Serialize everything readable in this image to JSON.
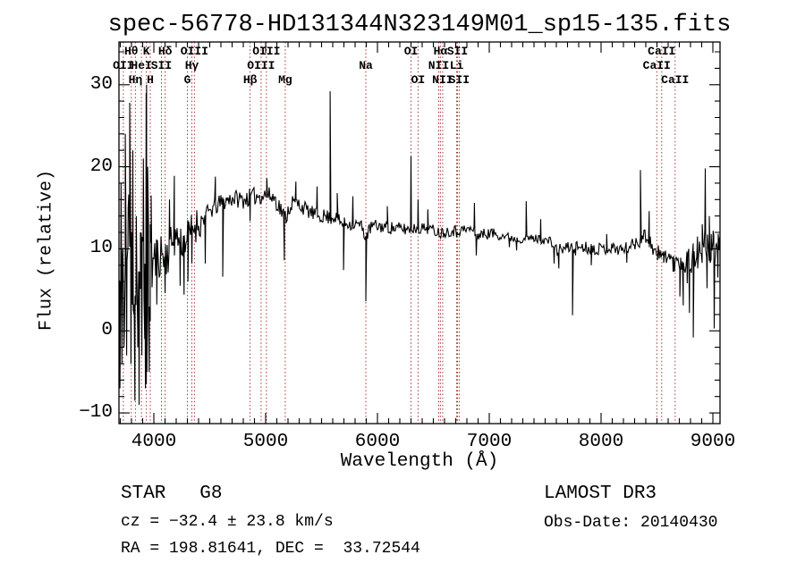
{
  "title": "spec-56778-HD131344N323149M01_sp15-135.fits",
  "footer": {
    "star_line": "STAR   G8",
    "survey_line": "LAMOST DR3",
    "cz_line": "cz = −32.4 ± 23.8 km/s",
    "obs_date_line": "Obs-Date: 20140430",
    "ra_dec_line": "RA = 198.81641, DEC =  33.72544"
  },
  "chart_data": {
    "type": "line",
    "title": "spec-56778-HD131344N323149M01_sp15-135.fits",
    "xlabel": "Wavelength (Å)",
    "ylabel": "Flux (relative)",
    "xlim": [
      3688,
      9064
    ],
    "ylim": [
      -11.3,
      35.2
    ],
    "x_ticks": [
      4000,
      5000,
      6000,
      7000,
      8000,
      9000
    ],
    "x_tick_labels": [
      "4000",
      "5000",
      "6000",
      "7000",
      "8000",
      "9000"
    ],
    "x_minor_step": 100,
    "y_ticks": [
      -10,
      0,
      10,
      20,
      30
    ],
    "y_tick_labels": [
      "−10",
      "0",
      "10",
      "20",
      "30"
    ],
    "y_minor_step": 2,
    "grid": false,
    "line_color": "#000000",
    "reference_line_color": "#aa3333",
    "spectral_lines": [
      {
        "label": "Hθ",
        "row": 1,
        "wavelength": 3798
      },
      {
        "label": "K",
        "row": 1,
        "wavelength": 3933
      },
      {
        "label": "Hδ",
        "row": 1,
        "wavelength": 4101
      },
      {
        "label": "OIII",
        "row": 1,
        "wavelength": 4363
      },
      {
        "label": "OIII",
        "row": 1,
        "wavelength": 5007
      },
      {
        "label": "OI",
        "row": 1,
        "wavelength": 6300
      },
      {
        "label": "Hα",
        "row": 1,
        "wavelength": 6563
      },
      {
        "label": "SII",
        "row": 1,
        "wavelength": 6716
      },
      {
        "label": "CaII",
        "row": 1,
        "wavelength": 8542
      },
      {
        "label": "OII",
        "row": 2,
        "wavelength": 3727
      },
      {
        "label": "HeI",
        "row": 2,
        "wavelength": 3889
      },
      {
        "label": "SII",
        "row": 2,
        "wavelength": 4068
      },
      {
        "label": "Hγ",
        "row": 2,
        "wavelength": 4340
      },
      {
        "label": "OIII",
        "row": 2,
        "wavelength": 4959
      },
      {
        "label": "Na",
        "row": 2,
        "wavelength": 5896
      },
      {
        "label": "NII",
        "row": 2,
        "wavelength": 6548
      },
      {
        "label": "Li",
        "row": 2,
        "wavelength": 6708
      },
      {
        "label": "CaII",
        "row": 2,
        "wavelength": 8498
      },
      {
        "label": "Hη",
        "row": 3,
        "wavelength": 3835
      },
      {
        "label": "H",
        "row": 3,
        "wavelength": 3968
      },
      {
        "label": "G",
        "row": 3,
        "wavelength": 4300
      },
      {
        "label": "Hβ",
        "row": 3,
        "wavelength": 4861
      },
      {
        "label": "Mg",
        "row": 3,
        "wavelength": 5175
      },
      {
        "label": "OI",
        "row": 3,
        "wavelength": 6363
      },
      {
        "label": "NII",
        "row": 3,
        "wavelength": 6583
      },
      {
        "label": "SII",
        "row": 3,
        "wavelength": 6731
      },
      {
        "label": "CaII",
        "row": 3,
        "wavelength": 8662
      }
    ],
    "series": [
      {
        "name": "flux",
        "anchors": [
          [
            3688,
            6
          ],
          [
            3720,
            4
          ],
          [
            3750,
            8
          ],
          [
            3780,
            12
          ],
          [
            3810,
            8
          ],
          [
            3840,
            5
          ],
          [
            3870,
            6
          ],
          [
            3900,
            7
          ],
          [
            3930,
            6
          ],
          [
            3960,
            6
          ],
          [
            3990,
            8
          ],
          [
            4020,
            9
          ],
          [
            4060,
            9.5
          ],
          [
            4100,
            9
          ],
          [
            4150,
            10.5
          ],
          [
            4200,
            11.5
          ],
          [
            4250,
            10.8
          ],
          [
            4300,
            11.5
          ],
          [
            4360,
            12.8
          ],
          [
            4420,
            13.4
          ],
          [
            4500,
            14.6
          ],
          [
            4600,
            15.6
          ],
          [
            4700,
            16.2
          ],
          [
            4800,
            16.0
          ],
          [
            4900,
            16.4
          ],
          [
            5000,
            16.6
          ],
          [
            5080,
            16.2
          ],
          [
            5175,
            13.8
          ],
          [
            5230,
            15.6
          ],
          [
            5300,
            15.4
          ],
          [
            5380,
            14.6
          ],
          [
            5450,
            14.1
          ],
          [
            5520,
            14.0
          ],
          [
            5577,
            13.8
          ],
          [
            5620,
            13.9
          ],
          [
            5680,
            13.1
          ],
          [
            5740,
            13.1
          ],
          [
            5800,
            13.0
          ],
          [
            5850,
            12.9
          ],
          [
            5896,
            11.5
          ],
          [
            5950,
            12.8
          ],
          [
            6050,
            12.7
          ],
          [
            6150,
            12.5
          ],
          [
            6250,
            12.4
          ],
          [
            6350,
            12.5
          ],
          [
            6450,
            12.5
          ],
          [
            6563,
            12.0
          ],
          [
            6650,
            12.2
          ],
          [
            6760,
            12.3
          ],
          [
            6850,
            12.4
          ],
          [
            6880,
            11.6
          ],
          [
            6950,
            11.8
          ],
          [
            7050,
            11.9
          ],
          [
            7150,
            11.5
          ],
          [
            7250,
            11.2
          ],
          [
            7350,
            11.3
          ],
          [
            7450,
            11.2
          ],
          [
            7550,
            10.9
          ],
          [
            7600,
            9.8
          ],
          [
            7660,
            10.0
          ],
          [
            7720,
            10.2
          ],
          [
            7800,
            10.3
          ],
          [
            7900,
            10.1
          ],
          [
            8000,
            10.0
          ],
          [
            8100,
            10.1
          ],
          [
            8200,
            9.9
          ],
          [
            8280,
            10.5
          ],
          [
            8340,
            11.2
          ],
          [
            8400,
            11.6
          ],
          [
            8450,
            10.6
          ],
          [
            8498,
            9.2
          ],
          [
            8520,
            9.6
          ],
          [
            8542,
            8.9
          ],
          [
            8580,
            9.4
          ],
          [
            8620,
            8.9
          ],
          [
            8662,
            8.2
          ],
          [
            8700,
            8.8
          ],
          [
            8760,
            8.6
          ],
          [
            8820,
            8.9
          ],
          [
            8880,
            9.3
          ],
          [
            8930,
            10.5
          ],
          [
            8970,
            9.8
          ],
          [
            9010,
            9.3
          ],
          [
            9064,
            9.8
          ]
        ],
        "noise_segments": [
          [
            3688,
            3995,
            7.5
          ],
          [
            3995,
            4150,
            3.0
          ],
          [
            4150,
            4420,
            2.2
          ],
          [
            4420,
            5300,
            1.1
          ],
          [
            5300,
            5590,
            0.9
          ],
          [
            5590,
            6290,
            0.8
          ],
          [
            6290,
            7100,
            0.7
          ],
          [
            7100,
            7590,
            0.55
          ],
          [
            7590,
            8300,
            0.75
          ],
          [
            8300,
            8700,
            1.1
          ],
          [
            8700,
            8955,
            1.9
          ],
          [
            8955,
            9064,
            2.4
          ]
        ],
        "spikes": [
          [
            3697,
            -7
          ],
          [
            3706,
            18
          ],
          [
            3714,
            -4
          ],
          [
            3722,
            10
          ],
          [
            3733,
            -2
          ],
          [
            3745,
            24
          ],
          [
            3757,
            -3
          ],
          [
            3770,
            15
          ],
          [
            3784,
            27.8
          ],
          [
            3795,
            -4
          ],
          [
            3812,
            22
          ],
          [
            3822,
            2
          ],
          [
            3830,
            -8.5
          ],
          [
            3843,
            14
          ],
          [
            3856,
            -2
          ],
          [
            3868,
            -9
          ],
          [
            3880,
            12
          ],
          [
            3893,
            -3
          ],
          [
            3906,
            21
          ],
          [
            3918,
            -1
          ],
          [
            3925,
            -7
          ],
          [
            3931,
            29
          ],
          [
            3933,
            -6.5
          ],
          [
            3935,
            30
          ],
          [
            3938,
            -5
          ],
          [
            3945,
            20
          ],
          [
            3952,
            2
          ],
          [
            3958,
            -5
          ],
          [
            3968,
            13
          ],
          [
            3976,
            16.5
          ],
          [
            4026,
            3.2
          ],
          [
            4101,
            4.6
          ],
          [
            4140,
            16
          ],
          [
            4183,
            18.9
          ],
          [
            4235,
            5.5
          ],
          [
            4270,
            4.4
          ],
          [
            4305,
            6.0
          ],
          [
            4340,
            8.2
          ],
          [
            4460,
            8.2
          ],
          [
            4550,
            18.8
          ],
          [
            4616,
            6.6
          ],
          [
            4861,
            13.4
          ],
          [
            5010,
            18.6
          ],
          [
            5167,
            8.6
          ],
          [
            5270,
            18.2
          ],
          [
            5460,
            17.6
          ],
          [
            5577,
            29.2
          ],
          [
            5640,
            16.8
          ],
          [
            5697,
            7.4
          ],
          [
            5780,
            16.4
          ],
          [
            5896,
            3.6
          ],
          [
            6088,
            15.2
          ],
          [
            6300,
            21.3
          ],
          [
            6363,
            16.0
          ],
          [
            6450,
            14.8
          ],
          [
            6563,
            11.3
          ],
          [
            6708,
            11.4
          ],
          [
            6867,
            15.6
          ],
          [
            6884,
            9.2
          ],
          [
            7180,
            10.2
          ],
          [
            7245,
            9.8
          ],
          [
            7330,
            15.8
          ],
          [
            7460,
            13.6
          ],
          [
            7580,
            8.2
          ],
          [
            7622,
            7.6
          ],
          [
            7745,
            1.9
          ],
          [
            7772,
            9.2
          ],
          [
            7912,
            8.0
          ],
          [
            8050,
            11.8
          ],
          [
            8230,
            8.3
          ],
          [
            8352,
            19.6
          ],
          [
            8430,
            14.6
          ],
          [
            8505,
            8.6
          ],
          [
            8560,
            8.3
          ],
          [
            8645,
            7.2
          ],
          [
            8705,
            4.2
          ],
          [
            8735,
            3.1
          ],
          [
            8770,
            5.8
          ],
          [
            8790,
            2.2
          ],
          [
            8825,
            -0.8
          ],
          [
            8862,
            11.5
          ],
          [
            8905,
            13.0
          ],
          [
            8932,
            19.8
          ],
          [
            8948,
            5.2
          ],
          [
            8968,
            14.0
          ],
          [
            8985,
            11.8
          ],
          [
            9002,
            12.2
          ],
          [
            9012,
            0.3
          ],
          [
            9028,
            10.5
          ],
          [
            9045,
            6.5
          ],
          [
            9056,
            11.0
          ]
        ]
      }
    ]
  }
}
